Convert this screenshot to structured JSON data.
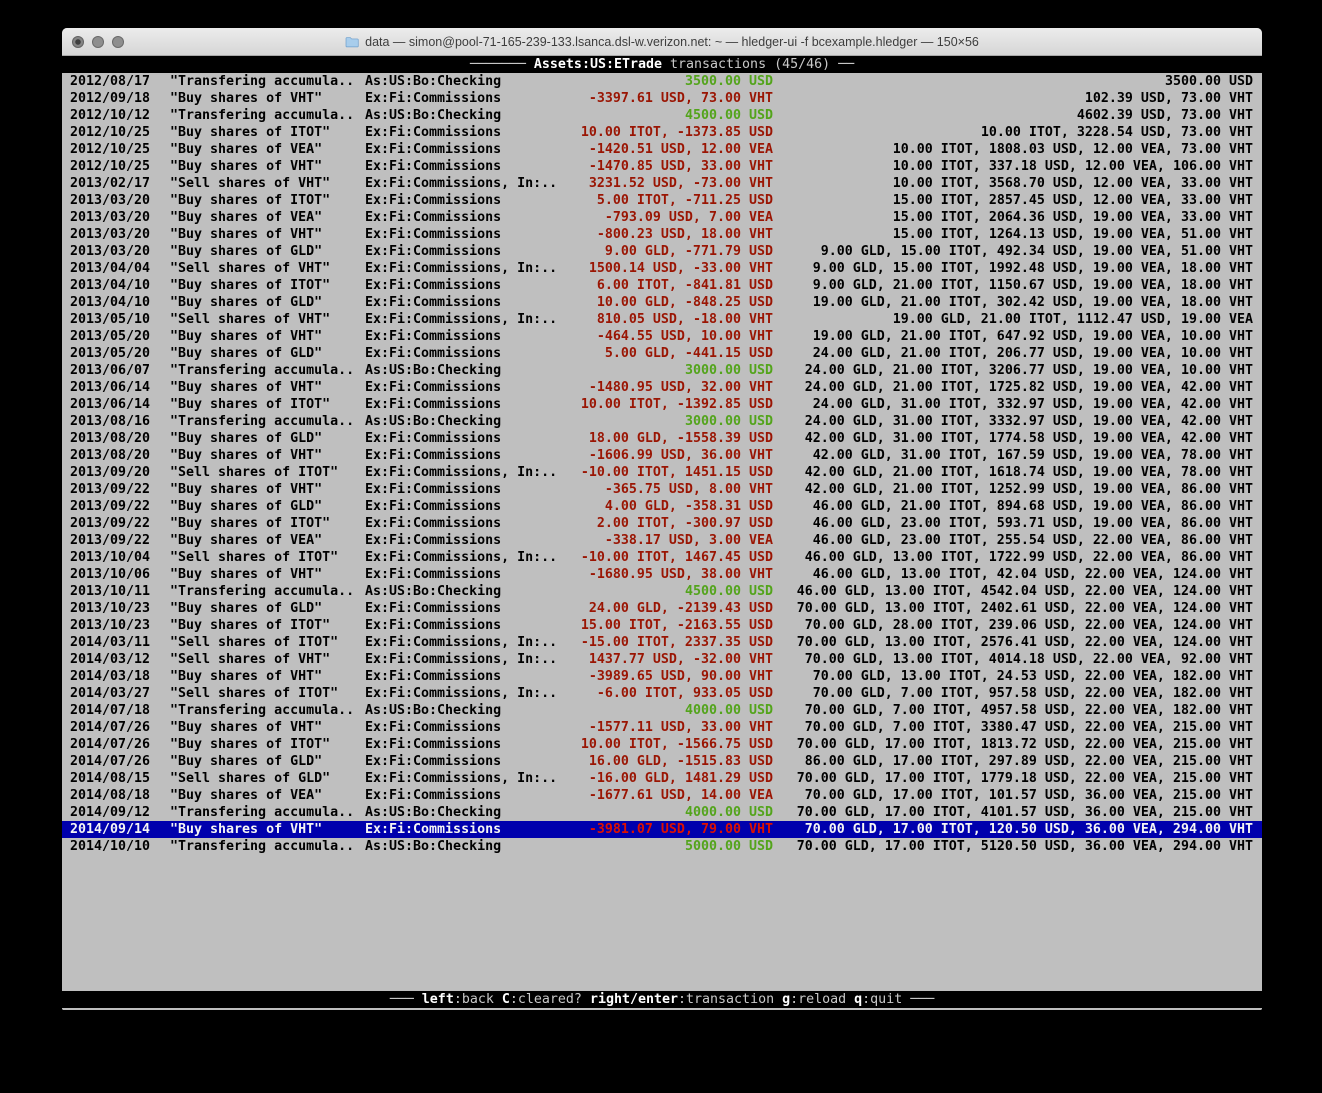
{
  "window": {
    "title": "data — simon@pool-71-165-239-133.lsanca.dsl-w.verizon.net: ~ — hledger-ui -f bcexample.hledger — 150×56"
  },
  "colors": {
    "terminal_bg": "#bfbfbf",
    "bar_bg": "#000000",
    "amount_negative": "#9a1503",
    "amount_positive": "#53a41b",
    "selected_bg": "#0000ad",
    "selected_amount": "#dd1000"
  },
  "top_bar": {
    "dashes_left": "─────── ",
    "account": "Assets:US:ETrade",
    "label": " transactions (45/46) ",
    "dashes_right": "──"
  },
  "bottom_bar": {
    "dashes_left": "─── ",
    "dashes_right": " ───",
    "hints": [
      {
        "key": "left",
        "desc": "back"
      },
      {
        "key": "C",
        "desc": "cleared?"
      },
      {
        "key": "right/enter",
        "desc": "transaction"
      },
      {
        "key": "g",
        "desc": "reload"
      },
      {
        "key": "q",
        "desc": "quit"
      }
    ]
  },
  "register": {
    "rows": [
      {
        "date": "2012/08/17",
        "desc": "\"Transfering accumula..",
        "account": "As:US:Bo:Checking",
        "amount": "3500.00 USD",
        "amount_color": "green",
        "balance": "3500.00 USD",
        "selected": false
      },
      {
        "date": "2012/09/18",
        "desc": "\"Buy shares of VHT\"",
        "account": "Ex:Fi:Commissions",
        "amount": "-3397.61 USD, 73.00 VHT",
        "amount_color": "red",
        "balance": "102.39 USD, 73.00 VHT",
        "selected": false
      },
      {
        "date": "2012/10/12",
        "desc": "\"Transfering accumula..",
        "account": "As:US:Bo:Checking",
        "amount": "4500.00 USD",
        "amount_color": "green",
        "balance": "4602.39 USD, 73.00 VHT",
        "selected": false
      },
      {
        "date": "2012/10/25",
        "desc": "\"Buy shares of ITOT\"",
        "account": "Ex:Fi:Commissions",
        "amount": "10.00 ITOT, -1373.85 USD",
        "amount_color": "red",
        "balance": "10.00 ITOT, 3228.54 USD, 73.00 VHT",
        "selected": false
      },
      {
        "date": "2012/10/25",
        "desc": "\"Buy shares of VEA\"",
        "account": "Ex:Fi:Commissions",
        "amount": "-1420.51 USD, 12.00 VEA",
        "amount_color": "red",
        "balance": "10.00 ITOT, 1808.03 USD, 12.00 VEA, 73.00 VHT",
        "selected": false
      },
      {
        "date": "2012/10/25",
        "desc": "\"Buy shares of VHT\"",
        "account": "Ex:Fi:Commissions",
        "amount": "-1470.85 USD, 33.00 VHT",
        "amount_color": "red",
        "balance": "10.00 ITOT, 337.18 USD, 12.00 VEA, 106.00 VHT",
        "selected": false
      },
      {
        "date": "2013/02/17",
        "desc": "\"Sell shares of VHT\"",
        "account": "Ex:Fi:Commissions, In:..",
        "amount": "3231.52 USD, -73.00 VHT",
        "amount_color": "red",
        "balance": "10.00 ITOT, 3568.70 USD, 12.00 VEA, 33.00 VHT",
        "selected": false
      },
      {
        "date": "2013/03/20",
        "desc": "\"Buy shares of ITOT\"",
        "account": "Ex:Fi:Commissions",
        "amount": "5.00 ITOT, -711.25 USD",
        "amount_color": "red",
        "balance": "15.00 ITOT, 2857.45 USD, 12.00 VEA, 33.00 VHT",
        "selected": false
      },
      {
        "date": "2013/03/20",
        "desc": "\"Buy shares of VEA\"",
        "account": "Ex:Fi:Commissions",
        "amount": "-793.09 USD, 7.00 VEA",
        "amount_color": "red",
        "balance": "15.00 ITOT, 2064.36 USD, 19.00 VEA, 33.00 VHT",
        "selected": false
      },
      {
        "date": "2013/03/20",
        "desc": "\"Buy shares of VHT\"",
        "account": "Ex:Fi:Commissions",
        "amount": "-800.23 USD, 18.00 VHT",
        "amount_color": "red",
        "balance": "15.00 ITOT, 1264.13 USD, 19.00 VEA, 51.00 VHT",
        "selected": false
      },
      {
        "date": "2013/03/20",
        "desc": "\"Buy shares of GLD\"",
        "account": "Ex:Fi:Commissions",
        "amount": "9.00 GLD, -771.79 USD",
        "amount_color": "red",
        "balance": "9.00 GLD, 15.00 ITOT, 492.34 USD, 19.00 VEA, 51.00 VHT",
        "selected": false
      },
      {
        "date": "2013/04/04",
        "desc": "\"Sell shares of VHT\"",
        "account": "Ex:Fi:Commissions, In:..",
        "amount": "1500.14 USD, -33.00 VHT",
        "amount_color": "red",
        "balance": "9.00 GLD, 15.00 ITOT, 1992.48 USD, 19.00 VEA, 18.00 VHT",
        "selected": false
      },
      {
        "date": "2013/04/10",
        "desc": "\"Buy shares of ITOT\"",
        "account": "Ex:Fi:Commissions",
        "amount": "6.00 ITOT, -841.81 USD",
        "amount_color": "red",
        "balance": "9.00 GLD, 21.00 ITOT, 1150.67 USD, 19.00 VEA, 18.00 VHT",
        "selected": false
      },
      {
        "date": "2013/04/10",
        "desc": "\"Buy shares of GLD\"",
        "account": "Ex:Fi:Commissions",
        "amount": "10.00 GLD, -848.25 USD",
        "amount_color": "red",
        "balance": "19.00 GLD, 21.00 ITOT, 302.42 USD, 19.00 VEA, 18.00 VHT",
        "selected": false
      },
      {
        "date": "2013/05/10",
        "desc": "\"Sell shares of VHT\"",
        "account": "Ex:Fi:Commissions, In:..",
        "amount": "810.05 USD, -18.00 VHT",
        "amount_color": "red",
        "balance": "19.00 GLD, 21.00 ITOT, 1112.47 USD, 19.00 VEA",
        "selected": false
      },
      {
        "date": "2013/05/20",
        "desc": "\"Buy shares of VHT\"",
        "account": "Ex:Fi:Commissions",
        "amount": "-464.55 USD, 10.00 VHT",
        "amount_color": "red",
        "balance": "19.00 GLD, 21.00 ITOT, 647.92 USD, 19.00 VEA, 10.00 VHT",
        "selected": false
      },
      {
        "date": "2013/05/20",
        "desc": "\"Buy shares of GLD\"",
        "account": "Ex:Fi:Commissions",
        "amount": "5.00 GLD, -441.15 USD",
        "amount_color": "red",
        "balance": "24.00 GLD, 21.00 ITOT, 206.77 USD, 19.00 VEA, 10.00 VHT",
        "selected": false
      },
      {
        "date": "2013/06/07",
        "desc": "\"Transfering accumula..",
        "account": "As:US:Bo:Checking",
        "amount": "3000.00 USD",
        "amount_color": "green",
        "balance": "24.00 GLD, 21.00 ITOT, 3206.77 USD, 19.00 VEA, 10.00 VHT",
        "selected": false
      },
      {
        "date": "2013/06/14",
        "desc": "\"Buy shares of VHT\"",
        "account": "Ex:Fi:Commissions",
        "amount": "-1480.95 USD, 32.00 VHT",
        "amount_color": "red",
        "balance": "24.00 GLD, 21.00 ITOT, 1725.82 USD, 19.00 VEA, 42.00 VHT",
        "selected": false
      },
      {
        "date": "2013/06/14",
        "desc": "\"Buy shares of ITOT\"",
        "account": "Ex:Fi:Commissions",
        "amount": "10.00 ITOT, -1392.85 USD",
        "amount_color": "red",
        "balance": "24.00 GLD, 31.00 ITOT, 332.97 USD, 19.00 VEA, 42.00 VHT",
        "selected": false
      },
      {
        "date": "2013/08/16",
        "desc": "\"Transfering accumula..",
        "account": "As:US:Bo:Checking",
        "amount": "3000.00 USD",
        "amount_color": "green",
        "balance": "24.00 GLD, 31.00 ITOT, 3332.97 USD, 19.00 VEA, 42.00 VHT",
        "selected": false
      },
      {
        "date": "2013/08/20",
        "desc": "\"Buy shares of GLD\"",
        "account": "Ex:Fi:Commissions",
        "amount": "18.00 GLD, -1558.39 USD",
        "amount_color": "red",
        "balance": "42.00 GLD, 31.00 ITOT, 1774.58 USD, 19.00 VEA, 42.00 VHT",
        "selected": false
      },
      {
        "date": "2013/08/20",
        "desc": "\"Buy shares of VHT\"",
        "account": "Ex:Fi:Commissions",
        "amount": "-1606.99 USD, 36.00 VHT",
        "amount_color": "red",
        "balance": "42.00 GLD, 31.00 ITOT, 167.59 USD, 19.00 VEA, 78.00 VHT",
        "selected": false
      },
      {
        "date": "2013/09/20",
        "desc": "\"Sell shares of ITOT\"",
        "account": "Ex:Fi:Commissions, In:..",
        "amount": "-10.00 ITOT, 1451.15 USD",
        "amount_color": "red",
        "balance": "42.00 GLD, 21.00 ITOT, 1618.74 USD, 19.00 VEA, 78.00 VHT",
        "selected": false
      },
      {
        "date": "2013/09/22",
        "desc": "\"Buy shares of VHT\"",
        "account": "Ex:Fi:Commissions",
        "amount": "-365.75 USD, 8.00 VHT",
        "amount_color": "red",
        "balance": "42.00 GLD, 21.00 ITOT, 1252.99 USD, 19.00 VEA, 86.00 VHT",
        "selected": false
      },
      {
        "date": "2013/09/22",
        "desc": "\"Buy shares of GLD\"",
        "account": "Ex:Fi:Commissions",
        "amount": "4.00 GLD, -358.31 USD",
        "amount_color": "red",
        "balance": "46.00 GLD, 21.00 ITOT, 894.68 USD, 19.00 VEA, 86.00 VHT",
        "selected": false
      },
      {
        "date": "2013/09/22",
        "desc": "\"Buy shares of ITOT\"",
        "account": "Ex:Fi:Commissions",
        "amount": "2.00 ITOT, -300.97 USD",
        "amount_color": "red",
        "balance": "46.00 GLD, 23.00 ITOT, 593.71 USD, 19.00 VEA, 86.00 VHT",
        "selected": false
      },
      {
        "date": "2013/09/22",
        "desc": "\"Buy shares of VEA\"",
        "account": "Ex:Fi:Commissions",
        "amount": "-338.17 USD, 3.00 VEA",
        "amount_color": "red",
        "balance": "46.00 GLD, 23.00 ITOT, 255.54 USD, 22.00 VEA, 86.00 VHT",
        "selected": false
      },
      {
        "date": "2013/10/04",
        "desc": "\"Sell shares of ITOT\"",
        "account": "Ex:Fi:Commissions, In:..",
        "amount": "-10.00 ITOT, 1467.45 USD",
        "amount_color": "red",
        "balance": "46.00 GLD, 13.00 ITOT, 1722.99 USD, 22.00 VEA, 86.00 VHT",
        "selected": false
      },
      {
        "date": "2013/10/06",
        "desc": "\"Buy shares of VHT\"",
        "account": "Ex:Fi:Commissions",
        "amount": "-1680.95 USD, 38.00 VHT",
        "amount_color": "red",
        "balance": "46.00 GLD, 13.00 ITOT, 42.04 USD, 22.00 VEA, 124.00 VHT",
        "selected": false
      },
      {
        "date": "2013/10/11",
        "desc": "\"Transfering accumula..",
        "account": "As:US:Bo:Checking",
        "amount": "4500.00 USD",
        "amount_color": "green",
        "balance": "46.00 GLD, 13.00 ITOT, 4542.04 USD, 22.00 VEA, 124.00 VHT",
        "selected": false
      },
      {
        "date": "2013/10/23",
        "desc": "\"Buy shares of GLD\"",
        "account": "Ex:Fi:Commissions",
        "amount": "24.00 GLD, -2139.43 USD",
        "amount_color": "red",
        "balance": "70.00 GLD, 13.00 ITOT, 2402.61 USD, 22.00 VEA, 124.00 VHT",
        "selected": false
      },
      {
        "date": "2013/10/23",
        "desc": "\"Buy shares of ITOT\"",
        "account": "Ex:Fi:Commissions",
        "amount": "15.00 ITOT, -2163.55 USD",
        "amount_color": "red",
        "balance": "70.00 GLD, 28.00 ITOT, 239.06 USD, 22.00 VEA, 124.00 VHT",
        "selected": false
      },
      {
        "date": "2014/03/11",
        "desc": "\"Sell shares of ITOT\"",
        "account": "Ex:Fi:Commissions, In:..",
        "amount": "-15.00 ITOT, 2337.35 USD",
        "amount_color": "red",
        "balance": "70.00 GLD, 13.00 ITOT, 2576.41 USD, 22.00 VEA, 124.00 VHT",
        "selected": false
      },
      {
        "date": "2014/03/12",
        "desc": "\"Sell shares of VHT\"",
        "account": "Ex:Fi:Commissions, In:..",
        "amount": "1437.77 USD, -32.00 VHT",
        "amount_color": "red",
        "balance": "70.00 GLD, 13.00 ITOT, 4014.18 USD, 22.00 VEA, 92.00 VHT",
        "selected": false
      },
      {
        "date": "2014/03/18",
        "desc": "\"Buy shares of VHT\"",
        "account": "Ex:Fi:Commissions",
        "amount": "-3989.65 USD, 90.00 VHT",
        "amount_color": "red",
        "balance": "70.00 GLD, 13.00 ITOT, 24.53 USD, 22.00 VEA, 182.00 VHT",
        "selected": false
      },
      {
        "date": "2014/03/27",
        "desc": "\"Sell shares of ITOT\"",
        "account": "Ex:Fi:Commissions, In:..",
        "amount": "-6.00 ITOT, 933.05 USD",
        "amount_color": "red",
        "balance": "70.00 GLD, 7.00 ITOT, 957.58 USD, 22.00 VEA, 182.00 VHT",
        "selected": false
      },
      {
        "date": "2014/07/18",
        "desc": "\"Transfering accumula..",
        "account": "As:US:Bo:Checking",
        "amount": "4000.00 USD",
        "amount_color": "green",
        "balance": "70.00 GLD, 7.00 ITOT, 4957.58 USD, 22.00 VEA, 182.00 VHT",
        "selected": false
      },
      {
        "date": "2014/07/26",
        "desc": "\"Buy shares of VHT\"",
        "account": "Ex:Fi:Commissions",
        "amount": "-1577.11 USD, 33.00 VHT",
        "amount_color": "red",
        "balance": "70.00 GLD, 7.00 ITOT, 3380.47 USD, 22.00 VEA, 215.00 VHT",
        "selected": false
      },
      {
        "date": "2014/07/26",
        "desc": "\"Buy shares of ITOT\"",
        "account": "Ex:Fi:Commissions",
        "amount": "10.00 ITOT, -1566.75 USD",
        "amount_color": "red",
        "balance": "70.00 GLD, 17.00 ITOT, 1813.72 USD, 22.00 VEA, 215.00 VHT",
        "selected": false
      },
      {
        "date": "2014/07/26",
        "desc": "\"Buy shares of GLD\"",
        "account": "Ex:Fi:Commissions",
        "amount": "16.00 GLD, -1515.83 USD",
        "amount_color": "red",
        "balance": "86.00 GLD, 17.00 ITOT, 297.89 USD, 22.00 VEA, 215.00 VHT",
        "selected": false
      },
      {
        "date": "2014/08/15",
        "desc": "\"Sell shares of GLD\"",
        "account": "Ex:Fi:Commissions, In:..",
        "amount": "-16.00 GLD, 1481.29 USD",
        "amount_color": "red",
        "balance": "70.00 GLD, 17.00 ITOT, 1779.18 USD, 22.00 VEA, 215.00 VHT",
        "selected": false
      },
      {
        "date": "2014/08/18",
        "desc": "\"Buy shares of VEA\"",
        "account": "Ex:Fi:Commissions",
        "amount": "-1677.61 USD, 14.00 VEA",
        "amount_color": "red",
        "balance": "70.00 GLD, 17.00 ITOT, 101.57 USD, 36.00 VEA, 215.00 VHT",
        "selected": false
      },
      {
        "date": "2014/09/12",
        "desc": "\"Transfering accumula..",
        "account": "As:US:Bo:Checking",
        "amount": "4000.00 USD",
        "amount_color": "green",
        "balance": "70.00 GLD, 17.00 ITOT, 4101.57 USD, 36.00 VEA, 215.00 VHT",
        "selected": false
      },
      {
        "date": "2014/09/14",
        "desc": "\"Buy shares of VHT\"",
        "account": "Ex:Fi:Commissions",
        "amount": "-3981.07 USD, 79.00 VHT",
        "amount_color": "red",
        "balance": "70.00 GLD, 17.00 ITOT, 120.50 USD, 36.00 VEA, 294.00 VHT",
        "selected": true
      },
      {
        "date": "2014/10/10",
        "desc": "\"Transfering accumula..",
        "account": "As:US:Bo:Checking",
        "amount": "5000.00 USD",
        "amount_color": "green",
        "balance": "70.00 GLD, 17.00 ITOT, 5120.50 USD, 36.00 VEA, 294.00 VHT",
        "selected": false
      }
    ]
  }
}
